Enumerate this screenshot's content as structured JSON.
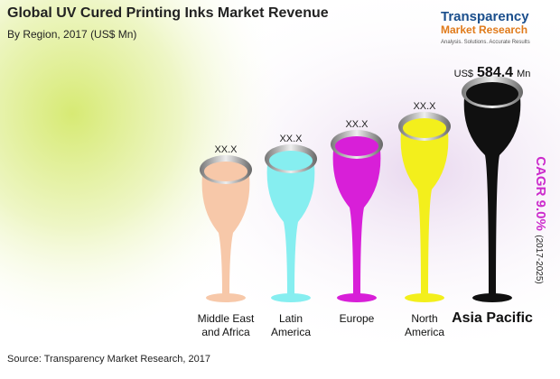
{
  "header": {
    "title": "Global UV Cured Printing Inks Market Revenue",
    "subtitle": "By Region, 2017 (US$ Mn)"
  },
  "logo": {
    "name": "Transparency",
    "name2": "Market Research",
    "tagline": "Analysis. Solutions. Accurate Results"
  },
  "regions": [
    {
      "label": "Middle East and Africa",
      "value_label": "XX.X",
      "color": "#f7c8a9"
    },
    {
      "label": "Latin America",
      "value_label": "XX.X",
      "color": "#86eef0"
    },
    {
      "label": "Europe",
      "value_label": "XX.X",
      "color": "#d81fd8"
    },
    {
      "label": "North America",
      "value_label": "XX.X",
      "color": "#f3ef1c"
    },
    {
      "label": "Asia Pacific",
      "currency": "US$",
      "value": 584.4,
      "unit": "Mn",
      "color": "#101010"
    }
  ],
  "cagr": {
    "label": "CAGR 9.0%",
    "period": "(2017-2025)"
  },
  "source": "Source: Transparency Market Research, 2017"
}
